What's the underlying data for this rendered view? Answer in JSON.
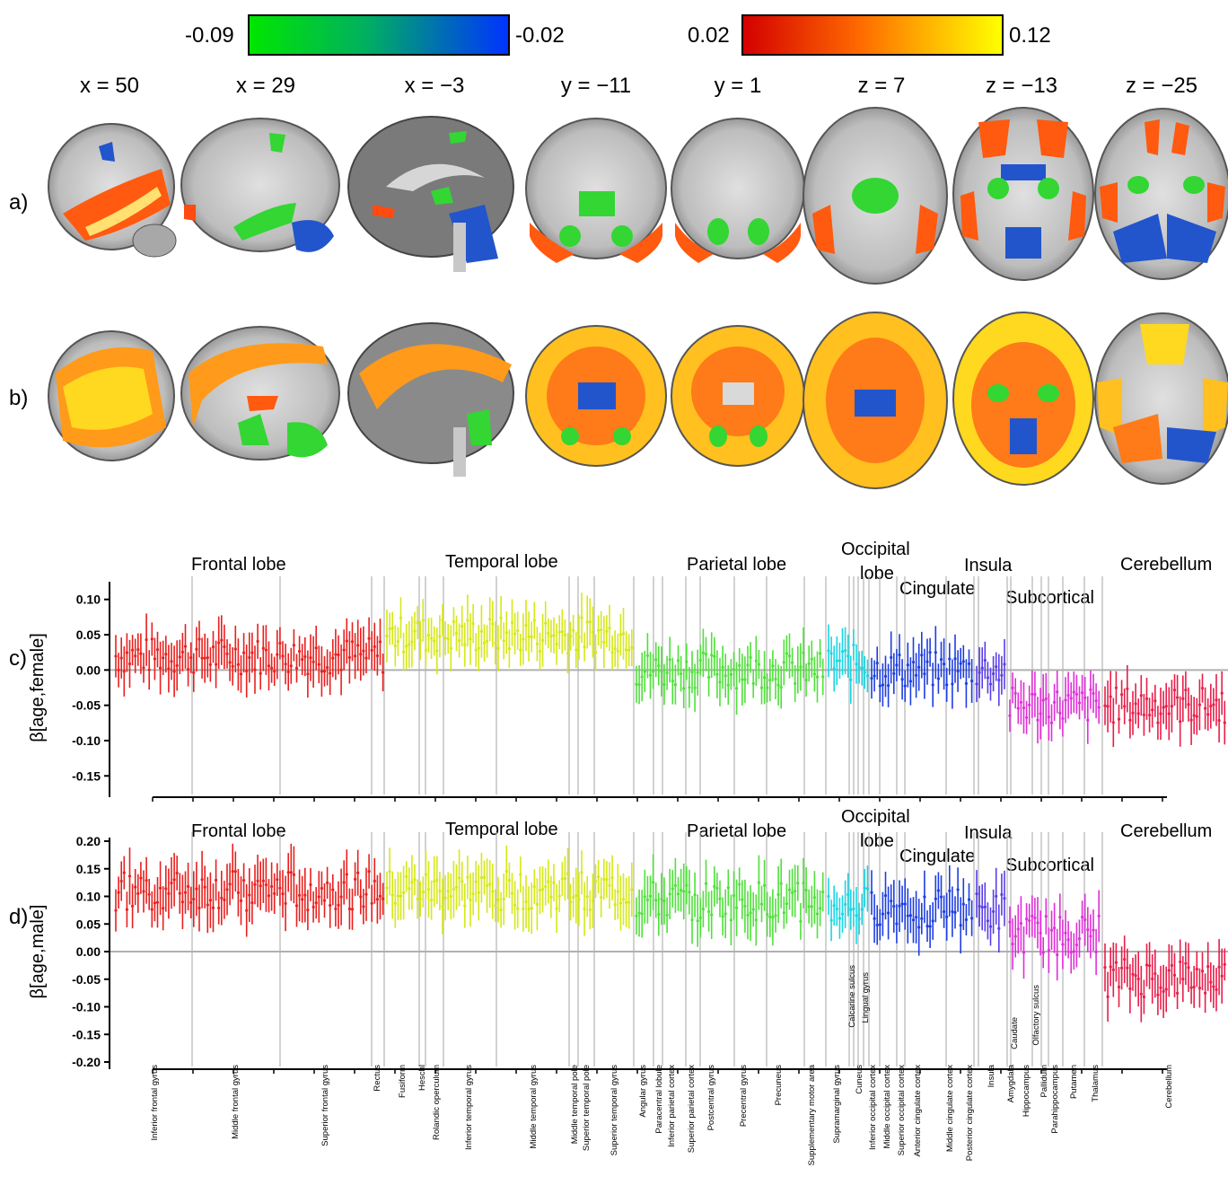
{
  "colorbars": {
    "negative": {
      "min_label": "-0.09",
      "max_label": "-0.02",
      "start_color": "#00e600",
      "end_color": "#0033ff"
    },
    "positive": {
      "min_label": "0.02",
      "max_label": "0.12",
      "start_color": "#d40000",
      "end_color": "#ffff00"
    }
  },
  "coordinates": [
    "x = 50",
    "x = 29",
    "x = −3",
    "y = −11",
    "y = 1",
    "z = 7",
    "z = −13",
    "z = −25"
  ],
  "row_labels": {
    "a": "a)",
    "b": "b)",
    "c": "c)",
    "d": "d)"
  },
  "colors": {
    "brain_grey": "#9a9a9a",
    "brain_light": "#d2d2d2",
    "brain_dark": "#5c5c5c",
    "overlay_red": "#ff4a10",
    "overlay_orange": "#ff9a1a",
    "overlay_yellow": "#ffd820",
    "overlay_green": "#33d633",
    "overlay_blue": "#2255cc"
  },
  "chart_data": [
    {
      "type": "scatter",
      "panel": "c",
      "ylabel": "β[age,female]",
      "ylim": [
        -0.17,
        0.12
      ],
      "yticks": [
        "0.10",
        "0.05",
        "0.00",
        "-0.05",
        "-0.10",
        "-0.15"
      ],
      "ytick_values": [
        0.1,
        0.05,
        0.0,
        -0.05,
        -0.1,
        -0.15
      ],
      "lobes": [
        {
          "name": "Frontal lobe",
          "color": "#e8201e",
          "mean": 0.02
        },
        {
          "name": "Temporal lobe",
          "color": "#d6e817",
          "mean": 0.05
        },
        {
          "name": "Parietal lobe",
          "color": "#4fe03a",
          "mean": 0.0
        },
        {
          "name": "Occipital lobe",
          "color": "#19d6e6",
          "mean": 0.01
        },
        {
          "name": "Cingulate",
          "color": "#1d3ee0",
          "mean": 0.0
        },
        {
          "name": "Insula",
          "color": "#5a3ee8",
          "mean": 0.0
        },
        {
          "name": "Subcortical",
          "color": "#e02fd8",
          "mean": -0.05
        },
        {
          "name": "Cerebellum",
          "color": "#e81e4a",
          "mean": -0.05
        }
      ]
    },
    {
      "type": "scatter",
      "panel": "d",
      "ylabel": "β[age,male]",
      "ylim": [
        -0.2,
        0.2
      ],
      "yticks": [
        "0.20",
        "0.15",
        "0.10",
        "0.05",
        "0.00",
        "-0.05",
        "-0.10",
        "-0.15",
        "-0.20"
      ],
      "ytick_values": [
        0.2,
        0.15,
        0.1,
        0.05,
        0.0,
        -0.05,
        -0.1,
        -0.15,
        -0.2
      ],
      "lobes": [
        {
          "name": "Frontal lobe",
          "color": "#e8201e",
          "mean": 0.11
        },
        {
          "name": "Temporal lobe",
          "color": "#d6e817",
          "mean": 0.11
        },
        {
          "name": "Parietal lobe",
          "color": "#4fe03a",
          "mean": 0.09
        },
        {
          "name": "Occipital lobe",
          "color": "#19d6e6",
          "mean": 0.08
        },
        {
          "name": "Cingulate",
          "color": "#1d3ee0",
          "mean": 0.08
        },
        {
          "name": "Insula",
          "color": "#5a3ee8",
          "mean": 0.07
        },
        {
          "name": "Subcortical",
          "color": "#e02fd8",
          "mean": 0.03
        },
        {
          "name": "Cerebellum",
          "color": "#e81e4a",
          "mean": -0.05
        }
      ]
    }
  ],
  "lobe_header_labels": {
    "frontal": "Frontal lobe",
    "temporal": "Temporal lobe",
    "parietal": "Parietal lobe",
    "occipital_1": "Occipital",
    "occipital_2": "lobe",
    "cingulate": "Cingulate",
    "insula": "Insula",
    "subcortical": "Subcortical",
    "cerebellum": "Cerebellum"
  },
  "regions": [
    "Inferior frontal gyrus",
    "Middle frontal gyrus",
    "Superior frontal gyrus",
    "Rectus",
    "Fusiform",
    "Heschl",
    "Rolandic operculum",
    "Inferior temporal gyrus",
    "Middle temporal gyrus",
    "Middle temporal pole",
    "Superior temporal pole",
    "Superior temporal gyrus",
    "Angular gyrus",
    "Paracentral lobule",
    "Inferior parietal cortex",
    "Superior parietal cortex",
    "Postcentral gyrus",
    "Precentral gyrus",
    "Precuneus",
    "Supplementary motor area",
    "Supramarginal gyrus",
    "Cuneus",
    "Inferior occipital cortex",
    "Middle occipital cortex",
    "Superior occipital cortex",
    "Anterior cingulate cortex",
    "Middle cingulate cortex",
    "Posterior cingulate cortex",
    "Insula",
    "Amygdala",
    "Hippocampus",
    "Pallidum",
    "Parahippocampus",
    "Putamen",
    "Thalamus",
    "Cerebellum"
  ],
  "inline_region_labels": [
    "Calcarine sulcus",
    "Lingual gyrus",
    "Caudate",
    "Olfactory sulcus"
  ]
}
